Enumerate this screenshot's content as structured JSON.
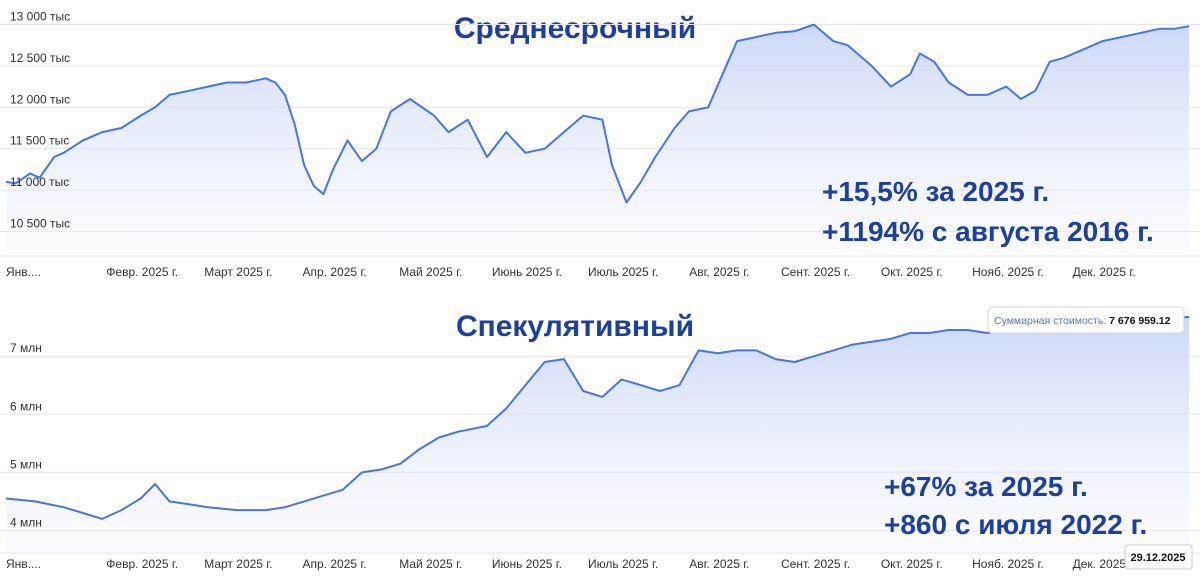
{
  "colors": {
    "line": "#4a74e0",
    "fill_top": "#c9d6f7",
    "title": "#1f3f9c",
    "grid": "#e3e6ee"
  },
  "chart_data": [
    {
      "type": "area",
      "title": "Среднесрочный",
      "ylim": [
        10300,
        13200
      ],
      "yticks": [
        10500,
        11000,
        11500,
        12000,
        12500,
        13000
      ],
      "ytick_labels": [
        "10 500 тыс",
        "11 000 тыс",
        "11 500 тыс",
        "12 000 тыс",
        "12 500 тыс",
        "13 000 тыс"
      ],
      "xlim": [
        0,
        12.35
      ],
      "xticks": [
        0.0,
        1.0,
        2.0,
        3.0,
        4.0,
        5.0,
        6.0,
        7.0,
        8.0,
        9.0,
        10.0,
        11.0
      ],
      "xtick_labels": [
        "Янв....",
        "Февр. 2025 г.",
        "Март 2025 г.",
        "Апр. 2025 г.",
        "Май 2025 г.",
        "Июнь 2025 г.",
        "Июль 2025 г.",
        "Авг. 2025 г.",
        "Сент. 2025 г.",
        "Окт. 2025 г.",
        "Нояб. 2025 г.",
        "Дек. 2025 г."
      ],
      "grid": true,
      "annotations": [
        "+15,5% за 2025 г.",
        "+1194% с августа 2016 г."
      ],
      "series": [
        {
          "x": [
            0,
            0.1,
            0.25,
            0.35,
            0.5,
            0.6,
            0.8,
            1.0,
            1.2,
            1.4,
            1.55,
            1.7,
            1.9,
            2.1,
            2.3,
            2.5,
            2.7,
            2.8,
            2.9,
            3.0,
            3.1,
            3.2,
            3.3,
            3.4,
            3.55,
            3.7,
            3.85,
            4.0,
            4.2,
            4.45,
            4.6,
            4.8,
            5.0,
            5.2,
            5.4,
            5.6,
            5.8,
            6.0,
            6.2,
            6.3,
            6.45,
            6.6,
            6.75,
            6.95,
            7.1,
            7.3,
            7.45,
            7.6,
            7.8,
            8.0,
            8.2,
            8.4,
            8.6,
            8.75,
            9.0,
            9.2,
            9.4,
            9.5,
            9.65,
            9.8,
            10.0,
            10.2,
            10.4,
            10.55,
            10.7,
            10.85,
            11.0,
            11.2,
            11.4,
            11.6,
            11.8,
            12.0,
            12.15,
            12.3
          ],
          "values": [
            11100,
            11080,
            11200,
            11150,
            11400,
            11450,
            11600,
            11700,
            11750,
            11900,
            12000,
            12150,
            12200,
            12250,
            12300,
            12300,
            12350,
            12300,
            12150,
            11800,
            11300,
            11050,
            10950,
            11250,
            11600,
            11350,
            11500,
            11950,
            12100,
            11900,
            11700,
            11850,
            11400,
            11700,
            11450,
            11500,
            11700,
            11900,
            11850,
            11300,
            10850,
            11100,
            11400,
            11750,
            11950,
            12000,
            12400,
            12800,
            12850,
            12900,
            12920,
            13000,
            12800,
            12750,
            12500,
            12250,
            12400,
            12650,
            12550,
            12300,
            12150,
            12150,
            12250,
            12100,
            12200,
            12550,
            12600,
            12700,
            12800,
            12850,
            12900,
            12950,
            12950,
            12980
          ]
        }
      ]
    },
    {
      "type": "area",
      "title": "Спекулятивный",
      "ylim": [
        3750,
        7950
      ],
      "yticks": [
        4000,
        5000,
        6000,
        7000
      ],
      "ytick_labels": [
        "4 млн",
        "5 млн",
        "6 млн",
        "7 млн"
      ],
      "xlim": [
        0,
        12.35
      ],
      "xticks": [
        0.0,
        1.0,
        2.0,
        3.0,
        4.0,
        5.0,
        6.0,
        7.0,
        8.0,
        9.0,
        10.0,
        11.0
      ],
      "xtick_labels": [
        "Янв....",
        "Февр. 2025 г.",
        "Март 2025 г.",
        "Апр. 2025 г.",
        "Май 2025 г.",
        "Июнь 2025 г.",
        "Июль 2025 г.",
        "Авг. 2025 г.",
        "Сент. 2025 г.",
        "Окт. 2025 г.",
        "Нояб. 2025 г.",
        "Дек. 2025 г."
      ],
      "grid": true,
      "annotations": [
        "+67% за 2025 г.",
        "+860 с июля 2022 г."
      ],
      "tooltip": {
        "label": "Суммарная стоимость",
        "value": "7 676 959.12"
      },
      "date_label": "29.12.2025",
      "series": [
        {
          "x": [
            0,
            0.3,
            0.6,
            0.8,
            1.0,
            1.2,
            1.4,
            1.55,
            1.7,
            1.9,
            2.1,
            2.4,
            2.7,
            2.9,
            3.1,
            3.3,
            3.5,
            3.7,
            3.9,
            4.1,
            4.3,
            4.5,
            4.7,
            4.85,
            5.0,
            5.2,
            5.4,
            5.6,
            5.8,
            6.0,
            6.2,
            6.4,
            6.6,
            6.8,
            7.0,
            7.2,
            7.4,
            7.6,
            7.8,
            8.0,
            8.2,
            8.4,
            8.6,
            8.8,
            9.0,
            9.2,
            9.4,
            9.6,
            9.8,
            10.0,
            10.2,
            10.4,
            10.6,
            10.8,
            11.0,
            11.2,
            11.4,
            11.6,
            11.8,
            12.0,
            12.15,
            12.3
          ],
          "values": [
            4550,
            4500,
            4400,
            4300,
            4200,
            4350,
            4550,
            4800,
            4500,
            4450,
            4400,
            4350,
            4350,
            4400,
            4500,
            4600,
            4700,
            5000,
            5050,
            5150,
            5400,
            5600,
            5700,
            5750,
            5800,
            6100,
            6500,
            6900,
            6950,
            6400,
            6300,
            6600,
            6500,
            6400,
            6500,
            7100,
            7050,
            7100,
            7100,
            6950,
            6900,
            7000,
            7100,
            7200,
            7250,
            7300,
            7400,
            7400,
            7450,
            7450,
            7400,
            7450,
            7450,
            7500,
            7500,
            7550,
            7600,
            7620,
            7600,
            7650,
            7660,
            7677
          ]
        }
      ]
    }
  ]
}
